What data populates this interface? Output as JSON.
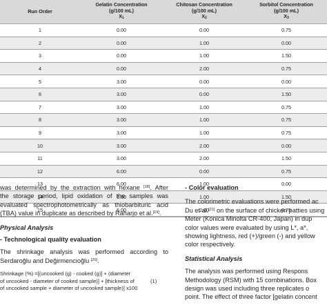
{
  "table": {
    "headers": [
      {
        "line1": "Run Order",
        "line2": "",
        "line3": ""
      },
      {
        "line1": "Gelatin Concentration",
        "line2": "(g/100 mL)",
        "line3": "X",
        "sub": "1"
      },
      {
        "line1": "Chitosan Concentration",
        "line2": "(g/100 mL)",
        "line3": "X",
        "sub": "2"
      },
      {
        "line1": "Sorbitol Concentration",
        "line2": "(g/100 mL)",
        "line3": "X",
        "sub": "3"
      }
    ],
    "rows": [
      [
        "1",
        "0.00",
        "0.00",
        "0.75"
      ],
      [
        "2",
        "0.00",
        "1.00",
        "0.00"
      ],
      [
        "3",
        "0.00",
        "1.00",
        "1.50"
      ],
      [
        "4",
        "0.00",
        "2.00",
        "0.75"
      ],
      [
        "5",
        "3.00",
        "0.00",
        "0.00"
      ],
      [
        "6",
        "3.00",
        "0.00",
        "1.50"
      ],
      [
        "7",
        "3.00",
        "1.00",
        "0.75"
      ],
      [
        "8",
        "3.00",
        "1.00",
        "0.75"
      ],
      [
        "9",
        "3.00",
        "1.00",
        "0.75"
      ],
      [
        "10",
        "3.00",
        "2.00",
        "0.00"
      ],
      [
        "11",
        "3.00",
        "2.00",
        "1.50"
      ],
      [
        "12",
        "6.00",
        "0.00",
        "0.75"
      ],
      [
        "13",
        "6.00",
        "1.00",
        "0.00"
      ],
      [
        "14",
        "6.00",
        "1.00",
        "1.50"
      ],
      [
        "15",
        "6.00",
        "2.00",
        "0.75"
      ]
    ]
  },
  "left": {
    "p1_l1": "was determined by the extraction with hexane",
    "p1_l1_ref": "[18]",
    "p1_l1_end": ". After",
    "p1_l2": "the storage period, lipid oxidation of the samples was",
    "p1_l3": "evaluated spectrophotometrically as thiobarbituric acid",
    "p1_l4": "(TBA) value in duplicate as described by Raharjo et al.",
    "p1_l4_ref": "[19]",
    "p1_l4_end": ".",
    "heading_physical": "Physical Analysis",
    "heading_tech": "- Technological quality evaluation",
    "p2_l1": "The shrinkage analysis was performed according to",
    "p2_l2": "Serdaroğlu and Değirmencioğlu",
    "p2_l2_ref": "[20]",
    "p2_l2_end": ".",
    "f_l1": "Shrinkage (%) =[(uncooked (g) - cooked (g)] + (diameter",
    "f_l2": "of uncooked - diameter of cooked sample)] + [thickness of",
    "f_l2_eq": "(1)",
    "f_l3": "of uncooked sample + diameter of uncooked sample)] x100"
  },
  "right": {
    "heading_color": "- Color evaluation",
    "c_l1": "The colorimetric evaluations were performed ac",
    "c_l2_a": "Du et al.",
    "c_l2_ref": "[21]",
    "c_l2_b": " on the surface of chicken patties using",
    "c_l3": "Meter (Konica Minolta CR-400, Japan) in dup",
    "c_l4": "color values were evaluated by using L*, a*,",
    "c_l5": "showing lightness, red (+)/green (-) and yellow",
    "c_l6": "color respectively.",
    "heading_stat": "Statistical Analysis",
    "s_l1": "The analysis was performed using Respons",
    "s_l2": "Methodology (RSM) with 15 combinations. Box",
    "s_l3": "design was used including three replicates o",
    "s_l4": "point. The effect of three factor [gelatin concent"
  }
}
